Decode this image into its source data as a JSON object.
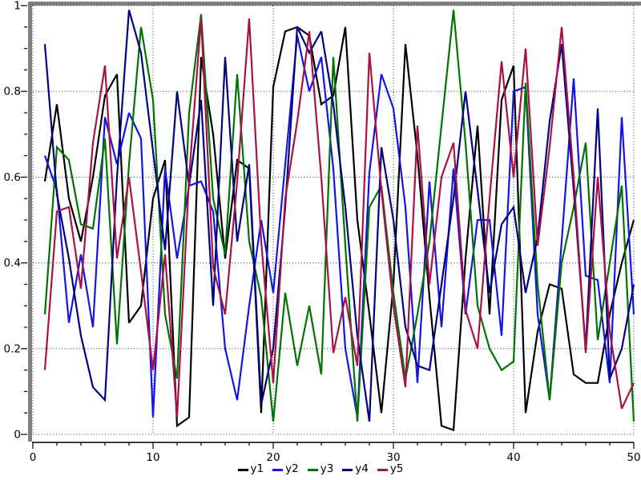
{
  "chart_data": {
    "type": "line",
    "title": "",
    "xlabel": "",
    "ylabel": "",
    "xlim": [
      0,
      50
    ],
    "ylim": [
      0,
      1
    ],
    "x_tick_labels": [
      "0",
      "10",
      "20",
      "30",
      "40",
      "50"
    ],
    "x_major_ticks": [
      0,
      10,
      20,
      30,
      40,
      50
    ],
    "x_minor_step": 2,
    "y_tick_labels": [
      "0",
      "0.2",
      "0.4",
      "0.6",
      "0.8",
      "1"
    ],
    "y_major_ticks": [
      0,
      0.2,
      0.4,
      0.6,
      0.8,
      1
    ],
    "y_minor_step": 0.05,
    "grid": "dotted-at-major-ticks",
    "legend_position": "bottom-center",
    "frame_color": "#7f7f7f",
    "grid_color": "#303030",
    "background": "#ffffff",
    "x": [
      1,
      2,
      3,
      4,
      5,
      6,
      7,
      8,
      9,
      10,
      11,
      12,
      13,
      14,
      15,
      16,
      17,
      18,
      19,
      20,
      21,
      22,
      23,
      24,
      25,
      26,
      27,
      28,
      29,
      30,
      31,
      32,
      33,
      34,
      35,
      36,
      37,
      38,
      39,
      40,
      41,
      42,
      43,
      44,
      45,
      46,
      47,
      48,
      49,
      50
    ],
    "series": [
      {
        "name": "y1",
        "color": "#000000",
        "values": [
          0.59,
          0.77,
          0.55,
          0.45,
          0.6,
          0.79,
          0.84,
          0.26,
          0.3,
          0.55,
          0.64,
          0.02,
          0.04,
          0.88,
          0.7,
          0.41,
          0.64,
          0.62,
          0.05,
          0.81,
          0.94,
          0.95,
          0.93,
          0.77,
          0.79,
          0.95,
          0.5,
          0.28,
          0.05,
          0.35,
          0.91,
          0.65,
          0.32,
          0.02,
          0.01,
          0.41,
          0.72,
          0.28,
          0.78,
          0.86,
          0.05,
          0.24,
          0.35,
          0.34,
          0.14,
          0.12,
          0.12,
          0.28,
          0.4,
          0.5
        ]
      },
      {
        "name": "y2",
        "color": "#1414e6",
        "values": [
          0.65,
          0.57,
          0.26,
          0.42,
          0.25,
          0.74,
          0.63,
          0.75,
          0.69,
          0.04,
          0.62,
          0.41,
          0.58,
          0.59,
          0.52,
          0.2,
          0.08,
          0.3,
          0.5,
          0.33,
          0.63,
          0.93,
          0.8,
          0.88,
          0.62,
          0.2,
          0.04,
          0.61,
          0.84,
          0.76,
          0.53,
          0.12,
          0.59,
          0.25,
          0.62,
          0.28,
          0.5,
          0.5,
          0.23,
          0.8,
          0.81,
          0.28,
          0.08,
          0.45,
          0.83,
          0.37,
          0.36,
          0.12,
          0.74,
          0.28
        ]
      },
      {
        "name": "y3",
        "color": "#007300",
        "values": [
          0.28,
          0.67,
          0.64,
          0.49,
          0.48,
          0.69,
          0.21,
          0.63,
          0.95,
          0.78,
          0.28,
          0.13,
          0.75,
          0.98,
          0.55,
          0.42,
          0.84,
          0.45,
          0.32,
          0.03,
          0.33,
          0.16,
          0.3,
          0.14,
          0.88,
          0.44,
          0.03,
          0.53,
          0.58,
          0.33,
          0.13,
          0.28,
          0.45,
          0.72,
          0.99,
          0.68,
          0.3,
          0.2,
          0.15,
          0.17,
          0.82,
          0.35,
          0.08,
          0.4,
          0.53,
          0.68,
          0.22,
          0.4,
          0.58,
          0.03
        ]
      },
      {
        "name": "y4",
        "color": "#000080",
        "values": [
          0.91,
          0.56,
          0.41,
          0.23,
          0.11,
          0.08,
          0.6,
          0.99,
          0.89,
          0.66,
          0.43,
          0.8,
          0.58,
          0.78,
          0.3,
          0.88,
          0.45,
          0.63,
          0.07,
          0.2,
          0.53,
          0.95,
          0.89,
          0.94,
          0.77,
          0.53,
          0.23,
          0.03,
          0.67,
          0.5,
          0.25,
          0.16,
          0.15,
          0.35,
          0.55,
          0.8,
          0.57,
          0.33,
          0.49,
          0.53,
          0.33,
          0.46,
          0.73,
          0.91,
          0.57,
          0.2,
          0.76,
          0.13,
          0.2,
          0.35
        ]
      },
      {
        "name": "y5",
        "color": "#a81048",
        "values": [
          0.15,
          0.52,
          0.53,
          0.34,
          0.68,
          0.86,
          0.41,
          0.6,
          0.38,
          0.15,
          0.42,
          0.04,
          0.6,
          0.97,
          0.39,
          0.28,
          0.59,
          0.97,
          0.45,
          0.12,
          0.55,
          0.73,
          0.94,
          0.6,
          0.19,
          0.32,
          0.16,
          0.89,
          0.57,
          0.3,
          0.11,
          0.72,
          0.35,
          0.6,
          0.68,
          0.29,
          0.2,
          0.55,
          0.87,
          0.6,
          0.9,
          0.44,
          0.67,
          0.95,
          0.6,
          0.19,
          0.6,
          0.24,
          0.06,
          0.12
        ]
      }
    ]
  }
}
